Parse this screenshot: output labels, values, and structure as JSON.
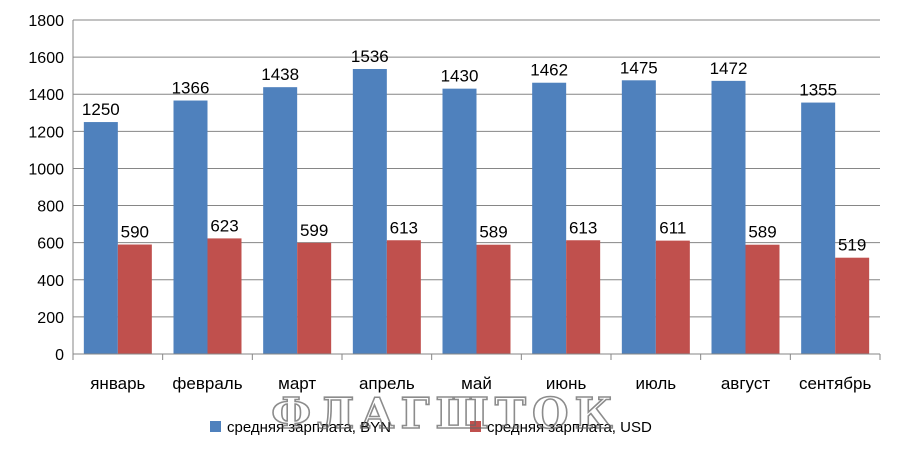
{
  "chart_data": {
    "type": "bar",
    "title": "",
    "xlabel": "",
    "ylabel": "",
    "ylim": [
      0,
      1800
    ],
    "yticks": [
      0,
      200,
      400,
      600,
      800,
      1000,
      1200,
      1400,
      1600,
      1800
    ],
    "grid": true,
    "legend_position": "bottom",
    "categories": [
      "январь",
      "февраль",
      "март",
      "апрель",
      "май",
      "июнь",
      "июль",
      "август",
      "сентябрь"
    ],
    "series": [
      {
        "name": "средняя зарплата, BYN",
        "color": "#4F81BD",
        "values": [
          1250,
          1366,
          1438,
          1536,
          1430,
          1462,
          1475,
          1472,
          1355
        ]
      },
      {
        "name": "средняя зарплата, USD",
        "color": "#C0504D",
        "values": [
          590,
          623,
          599,
          613,
          589,
          613,
          611,
          589,
          519
        ]
      }
    ]
  },
  "watermark": "ФЛАГШТОК"
}
